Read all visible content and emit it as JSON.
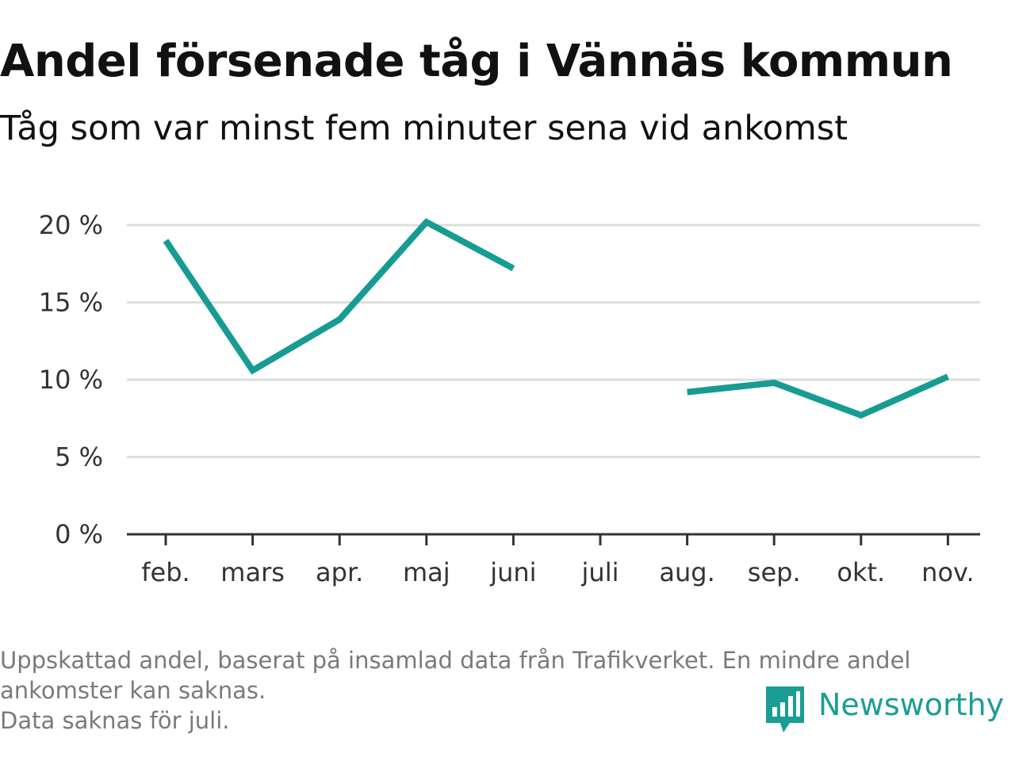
{
  "header": {
    "title": "Andel försenade tåg i Vännäs kommun",
    "subtitle": "Tåg som var minst fem minuter sena vid ankomst"
  },
  "chart_data": {
    "type": "line",
    "categories": [
      "feb.",
      "mars",
      "apr.",
      "maj",
      "juni",
      "juli",
      "aug.",
      "sep.",
      "okt.",
      "nov."
    ],
    "series": [
      {
        "values": [
          19.0,
          10.6,
          13.9,
          20.2,
          17.2,
          null,
          9.2,
          9.8,
          7.7,
          10.2
        ]
      }
    ],
    "ylim": [
      0,
      20
    ],
    "yticks": [
      0,
      5,
      10,
      15,
      20
    ],
    "ytick_labels": [
      "0 %",
      "5 %",
      "10 %",
      "15 %",
      "20 %"
    ],
    "grid": true,
    "colors": {
      "line": "#169c93",
      "grid": "#dddddd",
      "axis": "#333333"
    }
  },
  "footer": {
    "notes": [
      "Uppskattad andel, baserat på insamlad data från Trafikverket. En mindre andel",
      "ankomster kan saknas.",
      "Data saknas för juli."
    ],
    "brand": "Newsworthy",
    "brand_icon": "bar-chart-speech-bubble-icon",
    "brand_color": "#1a9e94"
  }
}
